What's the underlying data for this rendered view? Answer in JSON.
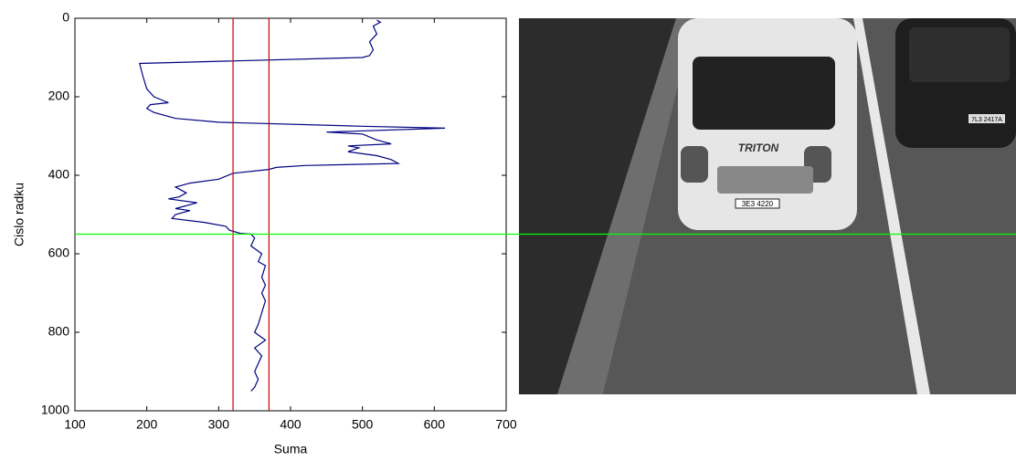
{
  "chart_data": {
    "type": "line",
    "xlabel": "Suma",
    "ylabel": "Cislo radku",
    "xlim": [
      100,
      700
    ],
    "ylim": [
      0,
      1000
    ],
    "y_reversed": true,
    "xticks": [
      100,
      200,
      300,
      400,
      500,
      600,
      700
    ],
    "yticks": [
      0,
      200,
      400,
      600,
      800,
      1000
    ],
    "grid": false,
    "color": "#000080",
    "x": [
      520,
      525,
      515,
      520,
      510,
      515,
      510,
      500,
      190,
      195,
      200,
      210,
      230,
      205,
      200,
      210,
      240,
      300,
      500,
      615,
      450,
      500,
      520,
      540,
      480,
      495,
      480,
      520,
      540,
      550,
      420,
      380,
      370,
      320,
      300,
      260,
      240,
      255,
      245,
      230,
      270,
      240,
      260,
      240,
      235,
      280,
      310,
      315,
      330,
      345,
      350,
      345,
      360,
      355,
      365,
      360,
      365,
      360,
      365,
      360,
      355,
      350,
      365,
      350,
      360,
      355,
      350,
      355,
      350,
      345
    ],
    "y": [
      5,
      10,
      20,
      40,
      60,
      80,
      95,
      100,
      115,
      150,
      180,
      200,
      215,
      220,
      230,
      240,
      255,
      265,
      275,
      280,
      290,
      295,
      310,
      320,
      325,
      330,
      340,
      350,
      360,
      370,
      375,
      380,
      385,
      395,
      410,
      420,
      430,
      445,
      455,
      460,
      470,
      485,
      490,
      500,
      510,
      520,
      530,
      540,
      548,
      550,
      560,
      580,
      600,
      620,
      630,
      660,
      680,
      700,
      720,
      750,
      780,
      800,
      820,
      840,
      860,
      880,
      900,
      920,
      940,
      950
    ],
    "vlines": [
      320,
      370
    ],
    "vline_color": "#cc0000",
    "hline": 550,
    "hline_color": "#00ff00"
  },
  "photo": {
    "van_logo": "TRITON",
    "van_plate": "3E3 4220",
    "car_plate": "7L3 2417A"
  }
}
